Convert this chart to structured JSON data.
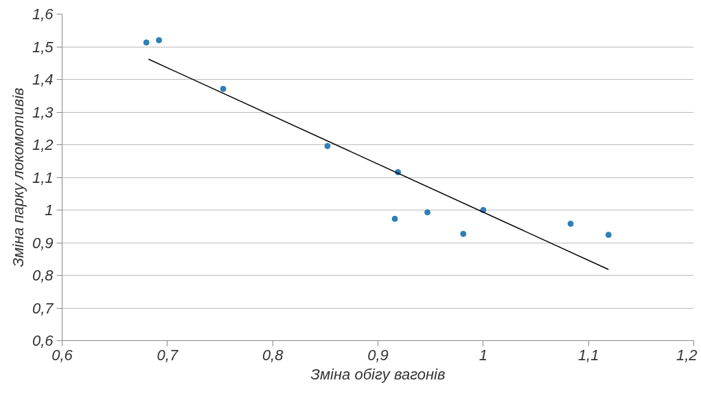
{
  "chart_data": {
    "type": "scatter",
    "xlabel": "Зміна обігу вагонів",
    "ylabel": "Зміна парку локомотивів",
    "xlim": [
      0.6,
      1.2
    ],
    "xticks": [
      {
        "value": 0.6,
        "label": "0,6"
      },
      {
        "value": 0.7,
        "label": "0,7"
      },
      {
        "value": 0.8,
        "label": "0,8"
      },
      {
        "value": 0.9,
        "label": "0,9"
      },
      {
        "value": 1,
        "label": "1"
      },
      {
        "value": 1.1,
        "label": "1,1"
      },
      {
        "value": 1.2,
        "label": "1,2"
      }
    ],
    "ylim": [
      0.6,
      1.6
    ],
    "yticks": [
      {
        "value": 0.6,
        "label": "0,6"
      },
      {
        "value": 0.7,
        "label": "0,7"
      },
      {
        "value": 0.8,
        "label": "0,8"
      },
      {
        "value": 0.9,
        "label": "0,9"
      },
      {
        "value": 1,
        "label": "1"
      },
      {
        "value": 1.1,
        "label": "1,1"
      },
      {
        "value": 1.2,
        "label": "1,2"
      },
      {
        "value": 1.3,
        "label": "1,3"
      },
      {
        "value": 1.4,
        "label": "1,4"
      },
      {
        "value": 1.5,
        "label": "1,5"
      },
      {
        "value": 1.6,
        "label": "1,6"
      }
    ],
    "grid": "y",
    "series": [
      {
        "marker": "circle",
        "color": "#2e7fb8",
        "x": [
          0.68,
          0.692,
          0.753,
          0.852,
          0.919,
          0.916,
          0.947,
          0.981,
          1.0,
          1.083,
          1.119
        ],
        "values": [
          1.513,
          1.52,
          1.371,
          1.196,
          1.116,
          0.973,
          0.993,
          0.927,
          1.0,
          0.958,
          0.924
        ]
      },
      {
        "type": "line",
        "color": "#000000",
        "x": [
          0.682,
          1.119
        ],
        "values": [
          1.462,
          0.818
        ]
      }
    ]
  }
}
